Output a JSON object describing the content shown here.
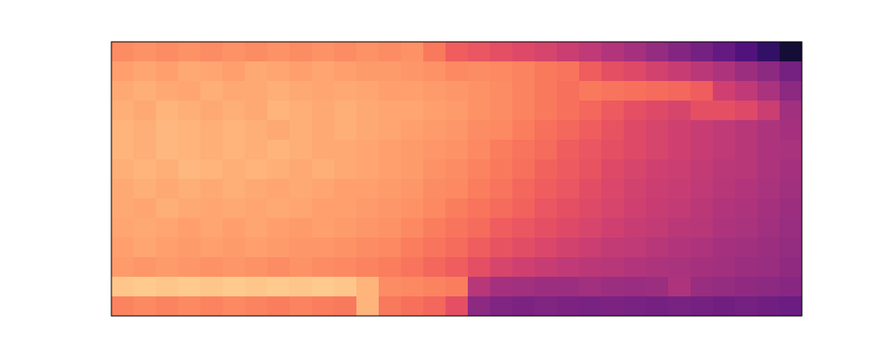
{
  "chart_data": {
    "type": "heatmap",
    "color": "magma",
    "tick_labels": false,
    "cells": [
      [
        0.76,
        0.77,
        0.76,
        0.77,
        0.76,
        0.77,
        0.76,
        0.77,
        0.76,
        0.77,
        0.76,
        0.77,
        0.76,
        0.77,
        0.72,
        0.66,
        0.64,
        0.62,
        0.6,
        0.58,
        0.55,
        0.52,
        0.49,
        0.46,
        0.42,
        0.38,
        0.34,
        0.3,
        0.25,
        0.18,
        0.1
      ],
      [
        0.8,
        0.81,
        0.8,
        0.82,
        0.81,
        0.8,
        0.82,
        0.81,
        0.8,
        0.81,
        0.8,
        0.79,
        0.79,
        0.78,
        0.77,
        0.75,
        0.76,
        0.75,
        0.74,
        0.72,
        0.71,
        0.66,
        0.62,
        0.6,
        0.57,
        0.54,
        0.51,
        0.48,
        0.44,
        0.4,
        0.34
      ],
      [
        0.82,
        0.83,
        0.82,
        0.81,
        0.83,
        0.82,
        0.82,
        0.83,
        0.82,
        0.81,
        0.82,
        0.81,
        0.8,
        0.8,
        0.79,
        0.78,
        0.77,
        0.76,
        0.74,
        0.72,
        0.7,
        0.72,
        0.71,
        0.7,
        0.69,
        0.68,
        0.66,
        0.56,
        0.52,
        0.47,
        0.4
      ],
      [
        0.83,
        0.82,
        0.84,
        0.83,
        0.82,
        0.83,
        0.82,
        0.84,
        0.83,
        0.82,
        0.83,
        0.82,
        0.81,
        0.81,
        0.8,
        0.79,
        0.77,
        0.76,
        0.74,
        0.72,
        0.7,
        0.68,
        0.65,
        0.62,
        0.6,
        0.58,
        0.62,
        0.62,
        0.6,
        0.55,
        0.45
      ],
      [
        0.84,
        0.83,
        0.85,
        0.84,
        0.83,
        0.84,
        0.83,
        0.82,
        0.83,
        0.82,
        0.83,
        0.82,
        0.81,
        0.8,
        0.79,
        0.78,
        0.76,
        0.75,
        0.73,
        0.7,
        0.68,
        0.66,
        0.63,
        0.6,
        0.58,
        0.56,
        0.54,
        0.52,
        0.5,
        0.48,
        0.46
      ],
      [
        0.84,
        0.83,
        0.85,
        0.84,
        0.83,
        0.84,
        0.83,
        0.84,
        0.83,
        0.82,
        0.82,
        0.81,
        0.8,
        0.79,
        0.78,
        0.77,
        0.75,
        0.73,
        0.71,
        0.69,
        0.66,
        0.64,
        0.62,
        0.6,
        0.58,
        0.56,
        0.54,
        0.52,
        0.5,
        0.48,
        0.47
      ],
      [
        0.83,
        0.84,
        0.83,
        0.85,
        0.84,
        0.83,
        0.84,
        0.83,
        0.82,
        0.83,
        0.82,
        0.81,
        0.8,
        0.79,
        0.77,
        0.76,
        0.74,
        0.72,
        0.7,
        0.67,
        0.65,
        0.63,
        0.6,
        0.58,
        0.56,
        0.55,
        0.53,
        0.51,
        0.5,
        0.48,
        0.46
      ],
      [
        0.82,
        0.83,
        0.82,
        0.83,
        0.82,
        0.83,
        0.82,
        0.81,
        0.82,
        0.81,
        0.8,
        0.8,
        0.79,
        0.78,
        0.76,
        0.75,
        0.73,
        0.71,
        0.68,
        0.66,
        0.64,
        0.61,
        0.59,
        0.57,
        0.55,
        0.54,
        0.52,
        0.5,
        0.49,
        0.47,
        0.45
      ],
      [
        0.82,
        0.81,
        0.83,
        0.82,
        0.81,
        0.82,
        0.81,
        0.82,
        0.81,
        0.8,
        0.8,
        0.79,
        0.78,
        0.77,
        0.75,
        0.73,
        0.71,
        0.69,
        0.67,
        0.64,
        0.62,
        0.6,
        0.58,
        0.56,
        0.54,
        0.53,
        0.51,
        0.49,
        0.48,
        0.46,
        0.44
      ],
      [
        0.81,
        0.82,
        0.81,
        0.8,
        0.81,
        0.8,
        0.81,
        0.8,
        0.79,
        0.8,
        0.79,
        0.78,
        0.77,
        0.75,
        0.73,
        0.71,
        0.69,
        0.66,
        0.64,
        0.62,
        0.6,
        0.58,
        0.56,
        0.54,
        0.53,
        0.51,
        0.5,
        0.48,
        0.47,
        0.45,
        0.43
      ],
      [
        0.8,
        0.81,
        0.8,
        0.79,
        0.8,
        0.79,
        0.8,
        0.79,
        0.78,
        0.78,
        0.77,
        0.76,
        0.75,
        0.73,
        0.71,
        0.69,
        0.66,
        0.63,
        0.61,
        0.59,
        0.57,
        0.55,
        0.53,
        0.52,
        0.5,
        0.49,
        0.48,
        0.46,
        0.45,
        0.44,
        0.42
      ],
      [
        0.79,
        0.78,
        0.79,
        0.78,
        0.77,
        0.78,
        0.77,
        0.76,
        0.77,
        0.76,
        0.75,
        0.74,
        0.73,
        0.71,
        0.68,
        0.66,
        0.62,
        0.58,
        0.56,
        0.54,
        0.52,
        0.51,
        0.5,
        0.49,
        0.48,
        0.47,
        0.46,
        0.45,
        0.44,
        0.43,
        0.41
      ],
      [
        0.88,
        0.89,
        0.88,
        0.89,
        0.88,
        0.89,
        0.88,
        0.89,
        0.88,
        0.89,
        0.88,
        0.84,
        0.76,
        0.75,
        0.74,
        0.73,
        0.5,
        0.46,
        0.45,
        0.44,
        0.44,
        0.45,
        0.44,
        0.43,
        0.44,
        0.48,
        0.43,
        0.42,
        0.41,
        0.4,
        0.39
      ],
      [
        0.74,
        0.75,
        0.74,
        0.75,
        0.74,
        0.75,
        0.74,
        0.73,
        0.74,
        0.73,
        0.72,
        0.84,
        0.72,
        0.7,
        0.68,
        0.62,
        0.4,
        0.37,
        0.36,
        0.37,
        0.36,
        0.35,
        0.36,
        0.35,
        0.34,
        0.35,
        0.34,
        0.33,
        0.34,
        0.33,
        0.32
      ]
    ]
  }
}
